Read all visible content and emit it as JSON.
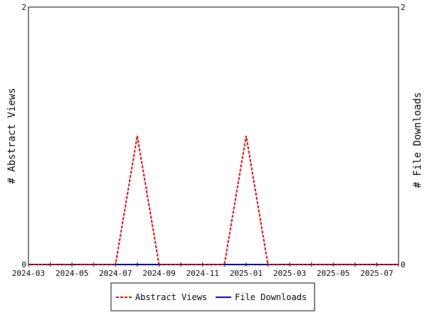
{
  "chart_data": {
    "type": "line",
    "x_tick_labels": [
      "2024-03",
      "2024-05",
      "2024-07",
      "2024-09",
      "2024-11",
      "2025-01",
      "2025-03",
      "2025-05",
      "2025-07"
    ],
    "x_range": [
      "2024-03",
      "2025-08"
    ],
    "y_left": {
      "label": "# Abstract Views",
      "range": [
        0,
        2
      ],
      "tick_labels": [
        "0",
        "2"
      ]
    },
    "y_right": {
      "label": "# File Downloads",
      "range": [
        0,
        2
      ],
      "tick_labels": [
        "0",
        "2"
      ]
    },
    "x": [
      "2024-03",
      "2024-04",
      "2024-05",
      "2024-06",
      "2024-07",
      "2024-08",
      "2024-09",
      "2024-10",
      "2024-11",
      "2024-12",
      "2025-01",
      "2025-02",
      "2025-03",
      "2025-04",
      "2025-05",
      "2025-06",
      "2025-07",
      "2025-08"
    ],
    "series": [
      {
        "name": "Abstract Views",
        "axis": "left",
        "color": "#cc0000",
        "style": "dashed",
        "values": [
          0,
          0,
          0,
          0,
          0,
          1,
          0,
          0,
          0,
          0,
          1,
          0,
          0,
          0,
          0,
          0,
          0,
          0
        ]
      },
      {
        "name": "File Downloads",
        "axis": "right",
        "color": "#000099",
        "style": "solid",
        "values": [
          0,
          0,
          0,
          0,
          0,
          0,
          0,
          0,
          0,
          0,
          0,
          0,
          0,
          0,
          0,
          0,
          0,
          0
        ]
      }
    ],
    "legend_position": "bottom-center",
    "grid": false
  }
}
